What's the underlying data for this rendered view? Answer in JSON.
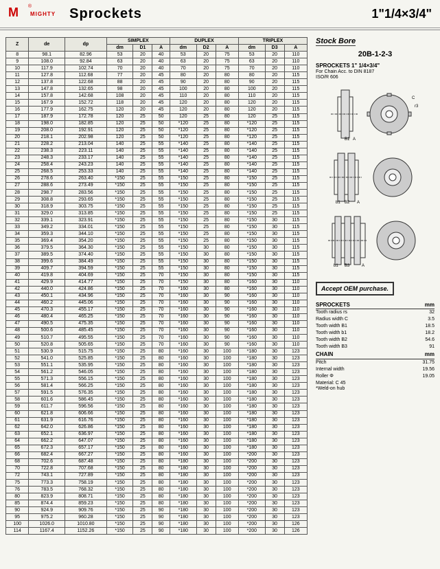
{
  "header": {
    "logo": "M",
    "brand": "MIGHTY",
    "title": "Sprockets",
    "size": "1\"1/4×3/4\""
  },
  "sidebar": {
    "stockbore": "Stock Bore",
    "code": "20B-1-2-3",
    "subtitle": "SPROCKETS 1\" 1/4×3/4\"",
    "forchain": "For Chain Acc. to DIN 8187",
    "iso": "ISO/R 606",
    "accept": "Accept OEM purchase."
  },
  "table": {
    "groups": [
      "SIMPLEX",
      "DUPLEX",
      "TRIPLEX"
    ],
    "cols": [
      "Z",
      "de",
      "dp",
      "dm",
      "D1",
      "A",
      "dm",
      "D2",
      "A",
      "dm",
      "D3",
      "A"
    ],
    "rows": [
      [
        "8",
        "98.1",
        "82.96",
        "53",
        "20",
        "40",
        "53",
        "20",
        "75",
        "53",
        "20",
        "110"
      ],
      [
        "9",
        "108.0",
        "92.84",
        "63",
        "20",
        "40",
        "63",
        "20",
        "75",
        "63",
        "20",
        "110"
      ],
      [
        "10",
        "117.9",
        "102.74",
        "70",
        "20",
        "40",
        "70",
        "20",
        "75",
        "70",
        "20",
        "110"
      ],
      [
        "11",
        "127.8",
        "112.68",
        "77",
        "20",
        "45",
        "80",
        "20",
        "80",
        "80",
        "20",
        "115"
      ],
      [
        "12",
        "137.8",
        "122.68",
        "88",
        "20",
        "45",
        "90",
        "20",
        "80",
        "90",
        "20",
        "115"
      ],
      [
        "13",
        "147.8",
        "132.65",
        "98",
        "20",
        "45",
        "100",
        "20",
        "80",
        "100",
        "20",
        "115"
      ],
      [
        "14",
        "157.8",
        "142.68",
        "108",
        "20",
        "45",
        "110",
        "20",
        "80",
        "110",
        "20",
        "115"
      ],
      [
        "15",
        "167.9",
        "152.72",
        "118",
        "20",
        "45",
        "120",
        "20",
        "80",
        "120",
        "20",
        "115"
      ],
      [
        "16",
        "177.9",
        "162.75",
        "120",
        "20",
        "45",
        "120",
        "20",
        "80",
        "120",
        "20",
        "115"
      ],
      [
        "17",
        "187.9",
        "172.78",
        "120",
        "25",
        "50",
        "120",
        "25",
        "80",
        "120",
        "25",
        "115"
      ],
      [
        "18",
        "198.0",
        "182.85",
        "120",
        "25",
        "50",
        "*120",
        "25",
        "80",
        "*120",
        "25",
        "115"
      ],
      [
        "19",
        "208.0",
        "192.91",
        "120",
        "25",
        "50",
        "*120",
        "25",
        "80",
        "*120",
        "25",
        "115"
      ],
      [
        "20",
        "218.1",
        "202.98",
        "120",
        "25",
        "50",
        "*120",
        "25",
        "80",
        "*120",
        "25",
        "115"
      ],
      [
        "21",
        "228.2",
        "213.04",
        "140",
        "25",
        "55",
        "*140",
        "25",
        "80",
        "*140",
        "25",
        "115"
      ],
      [
        "22",
        "238.3",
        "223.11",
        "140",
        "25",
        "55",
        "*140",
        "25",
        "80",
        "*140",
        "25",
        "115"
      ],
      [
        "23",
        "248.3",
        "233.17",
        "140",
        "25",
        "55",
        "*140",
        "25",
        "80",
        "*140",
        "25",
        "115"
      ],
      [
        "24",
        "258.4",
        "243.23",
        "140",
        "25",
        "55",
        "*140",
        "25",
        "80",
        "*140",
        "25",
        "115"
      ],
      [
        "25",
        "268.5",
        "253.33",
        "140",
        "25",
        "55",
        "*140",
        "25",
        "80",
        "*140",
        "25",
        "115"
      ],
      [
        "26",
        "278.6",
        "263.40",
        "*150",
        "25",
        "55",
        "*150",
        "25",
        "80",
        "*150",
        "25",
        "115"
      ],
      [
        "27",
        "288.6",
        "273.49",
        "*150",
        "25",
        "55",
        "*150",
        "25",
        "80",
        "*150",
        "25",
        "115"
      ],
      [
        "28",
        "298.7",
        "283.56",
        "*150",
        "25",
        "55",
        "*150",
        "25",
        "80",
        "*150",
        "25",
        "115"
      ],
      [
        "29",
        "308.8",
        "293.65",
        "*150",
        "25",
        "55",
        "*150",
        "25",
        "80",
        "*150",
        "25",
        "115"
      ],
      [
        "30",
        "318.9",
        "303.75",
        "*150",
        "25",
        "55",
        "*150",
        "25",
        "80",
        "*150",
        "25",
        "115"
      ],
      [
        "31",
        "329.0",
        "313.85",
        "*150",
        "25",
        "55",
        "*150",
        "25",
        "80",
        "*150",
        "25",
        "115"
      ],
      [
        "32",
        "339.1",
        "323.91",
        "*150",
        "25",
        "55",
        "*150",
        "25",
        "80",
        "*150",
        "30",
        "115"
      ],
      [
        "33",
        "349.2",
        "334.01",
        "*150",
        "25",
        "55",
        "*150",
        "25",
        "80",
        "*150",
        "30",
        "115"
      ],
      [
        "34",
        "359.3",
        "344.10",
        "*150",
        "25",
        "55",
        "*150",
        "25",
        "80",
        "*150",
        "30",
        "115"
      ],
      [
        "35",
        "369.4",
        "354.20",
        "*150",
        "25",
        "55",
        "*150",
        "25",
        "80",
        "*150",
        "30",
        "115"
      ],
      [
        "36",
        "379.5",
        "364.30",
        "*150",
        "25",
        "55",
        "*150",
        "30",
        "80",
        "*150",
        "30",
        "115"
      ],
      [
        "37",
        "389.5",
        "374.40",
        "*150",
        "25",
        "55",
        "*150",
        "30",
        "80",
        "*150",
        "30",
        "115"
      ],
      [
        "38",
        "399.6",
        "384.49",
        "*150",
        "25",
        "55",
        "*150",
        "30",
        "80",
        "*150",
        "30",
        "115"
      ],
      [
        "39",
        "409.7",
        "394.59",
        "*150",
        "25",
        "55",
        "*150",
        "30",
        "80",
        "*150",
        "30",
        "115"
      ],
      [
        "40",
        "419.8",
        "404.69",
        "*150",
        "25",
        "70",
        "*150",
        "30",
        "80",
        "*150",
        "30",
        "115"
      ],
      [
        "41",
        "429.9",
        "414.77",
        "*150",
        "25",
        "70",
        "*150",
        "30",
        "80",
        "*160",
        "30",
        "110"
      ],
      [
        "42",
        "440.0",
        "424.86",
        "*150",
        "25",
        "70",
        "*160",
        "30",
        "80",
        "*160",
        "30",
        "110"
      ],
      [
        "43",
        "450.1",
        "434.96",
        "*150",
        "25",
        "70",
        "*160",
        "30",
        "90",
        "*160",
        "30",
        "110"
      ],
      [
        "44",
        "460.2",
        "445.06",
        "*150",
        "25",
        "70",
        "*160",
        "30",
        "90",
        "*160",
        "30",
        "110"
      ],
      [
        "45",
        "470.3",
        "455.17",
        "*150",
        "25",
        "70",
        "*160",
        "30",
        "90",
        "*160",
        "30",
        "110"
      ],
      [
        "46",
        "480.4",
        "465.25",
        "*150",
        "25",
        "70",
        "*160",
        "30",
        "90",
        "*160",
        "30",
        "110"
      ],
      [
        "47",
        "490.5",
        "475.35",
        "*150",
        "25",
        "70",
        "*160",
        "30",
        "90",
        "*160",
        "30",
        "110"
      ],
      [
        "48",
        "500.6",
        "485.45",
        "*150",
        "25",
        "70",
        "*160",
        "30",
        "90",
        "*160",
        "30",
        "110"
      ],
      [
        "49",
        "510.7",
        "495.55",
        "*150",
        "25",
        "70",
        "*160",
        "30",
        "90",
        "*160",
        "30",
        "110"
      ],
      [
        "50",
        "520.8",
        "505.65",
        "*150",
        "25",
        "70",
        "*160",
        "30",
        "90",
        "*160",
        "30",
        "110"
      ],
      [
        "51",
        "530.9",
        "515.75",
        "*150",
        "25",
        "80",
        "*160",
        "30",
        "100",
        "*180",
        "30",
        "123"
      ],
      [
        "52",
        "541.0",
        "525.85",
        "*150",
        "25",
        "80",
        "*160",
        "30",
        "100",
        "*180",
        "30",
        "123"
      ],
      [
        "53",
        "551.1",
        "535.95",
        "*150",
        "25",
        "80",
        "*160",
        "30",
        "100",
        "*180",
        "30",
        "123"
      ],
      [
        "54",
        "561.2",
        "546.05",
        "*150",
        "25",
        "80",
        "*160",
        "30",
        "100",
        "*180",
        "30",
        "123"
      ],
      [
        "55",
        "571.3",
        "556.15",
        "*150",
        "25",
        "80",
        "*160",
        "30",
        "100",
        "*180",
        "30",
        "123"
      ],
      [
        "56",
        "581.4",
        "566.25",
        "*150",
        "25",
        "80",
        "*160",
        "30",
        "100",
        "*180",
        "30",
        "123"
      ],
      [
        "57",
        "591.5",
        "576.35",
        "*150",
        "25",
        "80",
        "*160",
        "30",
        "100",
        "*180",
        "30",
        "123"
      ],
      [
        "58",
        "601.6",
        "586.45",
        "*150",
        "25",
        "80",
        "*160",
        "30",
        "100",
        "*180",
        "30",
        "123"
      ],
      [
        "59",
        "611.7",
        "596.56",
        "*150",
        "25",
        "80",
        "*160",
        "30",
        "100",
        "*180",
        "30",
        "123"
      ],
      [
        "60",
        "621.8",
        "606.66",
        "*150",
        "25",
        "80",
        "*160",
        "30",
        "100",
        "*180",
        "30",
        "123"
      ],
      [
        "61",
        "631.9",
        "616.76",
        "*150",
        "25",
        "80",
        "*160",
        "30",
        "100",
        "*180",
        "30",
        "123"
      ],
      [
        "62",
        "642.0",
        "626.86",
        "*150",
        "25",
        "80",
        "*160",
        "30",
        "100",
        "*180",
        "30",
        "123"
      ],
      [
        "63",
        "652.1",
        "636.97",
        "*150",
        "25",
        "80",
        "*160",
        "30",
        "100",
        "*180",
        "30",
        "123"
      ],
      [
        "64",
        "662.2",
        "647.07",
        "*150",
        "25",
        "80",
        "*160",
        "30",
        "100",
        "*180",
        "30",
        "123"
      ],
      [
        "65",
        "672.3",
        "657.17",
        "*150",
        "25",
        "80",
        "*160",
        "30",
        "100",
        "*180",
        "30",
        "123"
      ],
      [
        "66",
        "682.4",
        "667.27",
        "*150",
        "25",
        "80",
        "*160",
        "30",
        "100",
        "*200",
        "30",
        "123"
      ],
      [
        "68",
        "702.6",
        "687.48",
        "*150",
        "25",
        "80",
        "*180",
        "30",
        "100",
        "*200",
        "30",
        "123"
      ],
      [
        "70",
        "722.8",
        "707.68",
        "*150",
        "25",
        "80",
        "*180",
        "30",
        "100",
        "*200",
        "30",
        "123"
      ],
      [
        "72",
        "743.1",
        "727.89",
        "*150",
        "25",
        "80",
        "*180",
        "30",
        "100",
        "*200",
        "30",
        "123"
      ],
      [
        "75",
        "773.3",
        "758.19",
        "*150",
        "25",
        "80",
        "*180",
        "30",
        "100",
        "*200",
        "30",
        "123"
      ],
      [
        "76",
        "783.5",
        "768.32",
        "*150",
        "25",
        "80",
        "*180",
        "30",
        "100",
        "*200",
        "30",
        "123"
      ],
      [
        "80",
        "823.9",
        "808.71",
        "*150",
        "25",
        "80",
        "*180",
        "30",
        "100",
        "*200",
        "30",
        "123"
      ],
      [
        "85",
        "874.4",
        "859.23",
        "*150",
        "25",
        "80",
        "*180",
        "30",
        "100",
        "*200",
        "30",
        "123"
      ],
      [
        "90",
        "924.9",
        "909.76",
        "*150",
        "25",
        "90",
        "*180",
        "30",
        "100",
        "*200",
        "30",
        "123"
      ],
      [
        "95",
        "975.2",
        "960.28",
        "*150",
        "25",
        "90",
        "*180",
        "30",
        "100",
        "*200",
        "30",
        "123"
      ],
      [
        "100",
        "1026.0",
        "1010.80",
        "*150",
        "25",
        "90",
        "*180",
        "30",
        "100",
        "*200",
        "30",
        "126"
      ],
      [
        "114",
        "1167.4",
        "1152.26",
        "*150",
        "25",
        "90",
        "*180",
        "30",
        "100",
        "*200",
        "30",
        "126"
      ]
    ]
  },
  "specs": {
    "sprockets_hdr": "SPROCKETS",
    "mm": "mm",
    "sprockets": [
      [
        "Tooth radius rs",
        "32"
      ],
      [
        "Radius width C",
        "3.5"
      ],
      [
        "Tooth width B1",
        "18.5"
      ],
      [
        "Tooth width b1",
        "18.2"
      ],
      [
        "Tooth width B2",
        "54.6"
      ],
      [
        "Tooth width B3",
        "91"
      ]
    ],
    "chain_hdr": "CHAIN",
    "chain": [
      [
        "Pitch",
        "31.75"
      ],
      [
        "Internal width",
        "19.56"
      ],
      [
        "Roller Φ",
        "19.05"
      ]
    ],
    "material": "Material: C 45",
    "weldon": "*Weld-on hub"
  }
}
